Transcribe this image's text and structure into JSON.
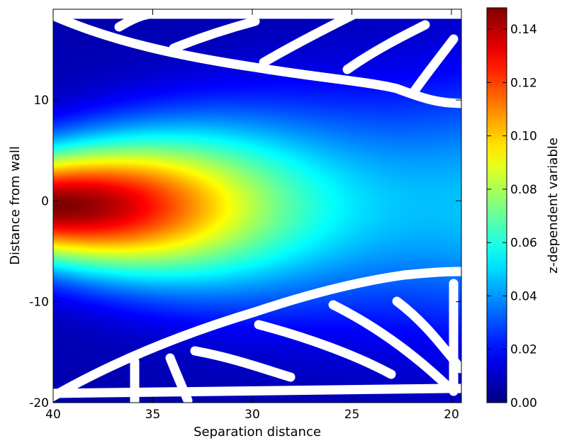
{
  "chart_data": {
    "type": "heatmap",
    "title": "",
    "xlabel": "Separation distance",
    "ylabel": "Distance from wall",
    "x_ticks": [
      40,
      35,
      30,
      25,
      20
    ],
    "y_ticks": [
      10,
      0,
      -10,
      -20
    ],
    "xlim": [
      40,
      19.5
    ],
    "ylim": [
      -20,
      19
    ],
    "x_axis_reversed": true,
    "colormap": "jet",
    "grid": false,
    "colorbar": {
      "label": "z-dependent variable",
      "ticks": [
        0.0,
        0.02,
        0.04,
        0.06,
        0.08,
        0.1,
        0.12,
        0.14
      ],
      "tick_labels": [
        "0.00",
        "0.02",
        "0.04",
        "0.06",
        "0.08",
        "0.10",
        "0.12",
        "0.14"
      ],
      "range": [
        0.0,
        0.148
      ]
    },
    "field": {
      "peak_value": 0.148,
      "peak_x": 40,
      "peak_y": -0.5,
      "value_at_x20_y0": 0.045,
      "background_value": 0.012
    },
    "overlay_color": "#ffffff"
  }
}
